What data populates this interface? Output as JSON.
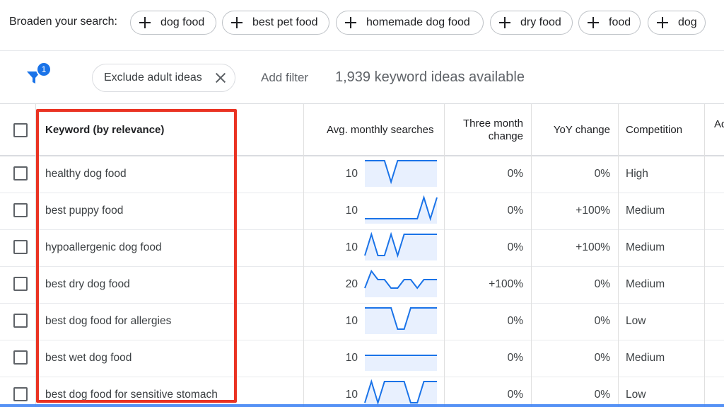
{
  "broaden": {
    "label": "Broaden your search:",
    "chips": [
      "dog food",
      "best pet food",
      "homemade dog food",
      "dry food",
      "food",
      "dog"
    ]
  },
  "filters": {
    "badge_count": "1",
    "exclude_chip": "Exclude adult ideas",
    "add_filter": "Add filter",
    "ideas_available": "1,939 keyword ideas available"
  },
  "table": {
    "headers": {
      "keyword": "Keyword (by relevance)",
      "avg_monthly": "Avg. monthly searches",
      "three_month_line1": "Three month",
      "three_month_line2": "change",
      "yoy": "YoY change",
      "competition": "Competition",
      "ad_impression": "Ad"
    },
    "rows": [
      {
        "keyword": "healthy dog food",
        "searches": "10",
        "three_month": "0%",
        "yoy": "0%",
        "competition": "High",
        "trend": [
          1,
          1,
          1,
          1,
          0,
          1,
          1,
          1,
          1,
          1,
          1,
          1
        ]
      },
      {
        "keyword": "best puppy food",
        "searches": "10",
        "three_month": "0%",
        "yoy": "+100%",
        "competition": "Medium",
        "trend": [
          0,
          0,
          0,
          0,
          0,
          0,
          0,
          0,
          0,
          1,
          0,
          1
        ]
      },
      {
        "keyword": "hypoallergenic dog food",
        "searches": "10",
        "three_month": "0%",
        "yoy": "+100%",
        "competition": "Medium",
        "trend": [
          0,
          1,
          0,
          0,
          1,
          0,
          1,
          1,
          1,
          1,
          1,
          1
        ]
      },
      {
        "keyword": "best dry dog food",
        "searches": "20",
        "three_month": "+100%",
        "yoy": "0%",
        "competition": "Medium",
        "trend": [
          0.2,
          1,
          0.6,
          0.6,
          0.2,
          0.2,
          0.6,
          0.6,
          0.2,
          0.6,
          0.6,
          0.6
        ]
      },
      {
        "keyword": "best dog food for allergies",
        "searches": "10",
        "three_month": "0%",
        "yoy": "0%",
        "competition": "Low",
        "trend": [
          1,
          1,
          1,
          1,
          1,
          0,
          0,
          1,
          1,
          1,
          1,
          1
        ]
      },
      {
        "keyword": "best wet dog food",
        "searches": "10",
        "three_month": "0%",
        "yoy": "0%",
        "competition": "Medium",
        "trend": [
          0.5,
          0.5,
          0.5,
          0.5,
          0.5,
          0.5,
          0.5,
          0.5,
          0.5,
          0.5,
          0.5,
          0.5
        ]
      },
      {
        "keyword": "best dog food for sensitive stomach",
        "searches": "10",
        "three_month": "0%",
        "yoy": "0%",
        "competition": "Low",
        "trend": [
          0,
          1,
          0,
          1,
          1,
          1,
          1,
          0,
          0,
          1,
          1,
          1
        ]
      }
    ]
  },
  "colors": {
    "accent": "#1a73e8",
    "highlight": "#ea3323",
    "spark_line": "#1a73e8",
    "spark_fill": "#e8f0fe"
  }
}
